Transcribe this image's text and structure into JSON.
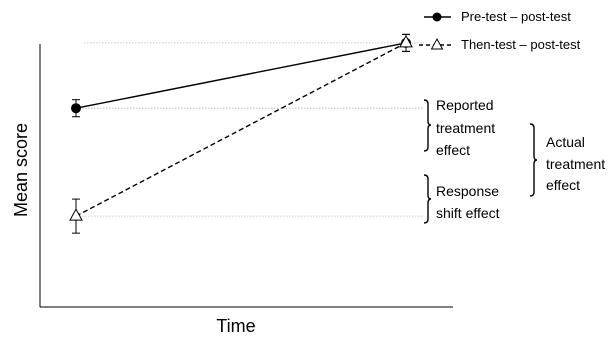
{
  "chart_data": {
    "type": "line",
    "xlabel": "Time",
    "ylabel": "Mean score",
    "categories": [
      "",
      ""
    ],
    "ylim": [
      0,
      100
    ],
    "grid": false,
    "legend_position": "top-right",
    "series": [
      {
        "name": "Pre-test – post-test",
        "marker": "filled-circle",
        "line_style": "solid",
        "values": [
          70,
          93
        ],
        "error": [
          3,
          3
        ]
      },
      {
        "name": "Then-test – post-test",
        "marker": "open-triangle",
        "line_style": "dashed",
        "values": [
          32,
          93
        ],
        "error": [
          6,
          3
        ]
      }
    ],
    "reference_lines": [
      70,
      32,
      93
    ],
    "annotations": [
      {
        "key": "reported",
        "lines": [
          "Reported",
          "treatment",
          "effect"
        ]
      },
      {
        "key": "shift",
        "lines": [
          "Response",
          "shift effect"
        ]
      },
      {
        "key": "actual",
        "lines": [
          "Actual",
          "treatment",
          "effect"
        ]
      }
    ]
  }
}
